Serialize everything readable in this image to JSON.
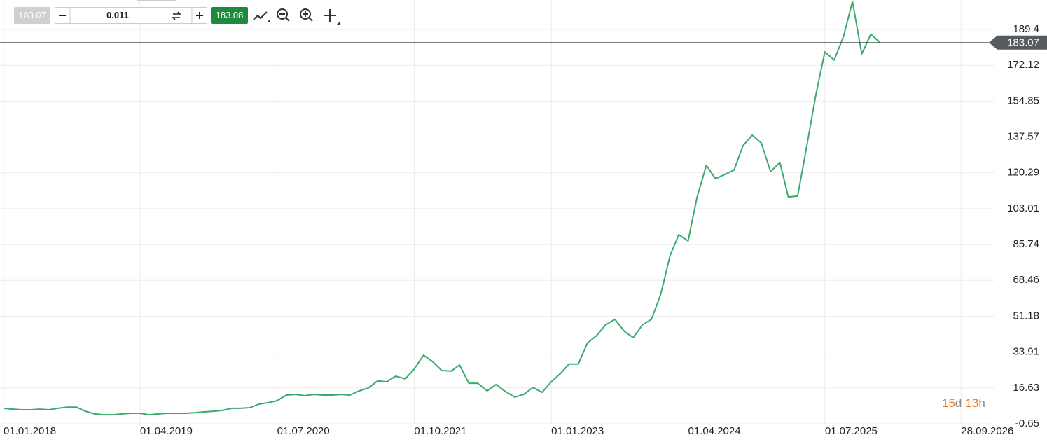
{
  "toolbar": {
    "bid": "183.07",
    "lot": "0.011",
    "ask": "183.08"
  },
  "countdown": {
    "days": "15",
    "days_unit": "d",
    "hours": "13",
    "hours_unit": "h"
  },
  "chart_data": {
    "type": "line",
    "color": "#3aaa6e",
    "grid": true,
    "x": [
      "01.01.2018",
      "01.02.2018",
      "01.03.2018",
      "01.04.2018",
      "01.05.2018",
      "01.06.2018",
      "01.07.2018",
      "01.08.2018",
      "01.09.2018",
      "01.10.2018",
      "01.11.2018",
      "01.12.2018",
      "01.01.2019",
      "01.02.2019",
      "01.03.2019",
      "01.04.2019",
      "01.05.2019",
      "01.06.2019",
      "01.07.2019",
      "01.08.2019",
      "01.09.2019",
      "01.10.2019",
      "01.11.2019",
      "01.12.2019",
      "01.01.2020",
      "01.02.2020",
      "01.03.2020",
      "01.04.2020",
      "01.05.2020",
      "01.06.2020",
      "01.07.2020",
      "01.08.2020",
      "01.09.2020",
      "01.10.2020",
      "01.11.2020",
      "01.12.2020",
      "01.01.2021",
      "01.02.2021",
      "01.03.2021",
      "01.04.2021",
      "01.05.2021",
      "01.06.2021",
      "01.07.2021",
      "01.08.2021",
      "01.09.2021",
      "01.10.2021",
      "01.11.2021",
      "01.12.2021",
      "01.01.2022",
      "01.02.2022",
      "01.03.2022",
      "01.04.2022",
      "01.05.2022",
      "01.06.2022",
      "01.07.2022",
      "01.08.2022",
      "01.09.2022",
      "01.10.2022",
      "01.11.2022",
      "01.12.2022",
      "01.01.2023",
      "01.02.2023",
      "01.03.2023",
      "01.04.2023",
      "01.05.2023",
      "01.06.2023",
      "01.07.2023",
      "01.08.2023",
      "01.09.2023",
      "01.10.2023",
      "01.11.2023",
      "01.12.2023",
      "01.01.2024",
      "01.02.2024",
      "01.03.2024",
      "01.04.2024",
      "01.05.2024",
      "01.06.2024",
      "01.07.2024",
      "01.08.2024",
      "01.09.2024",
      "01.10.2024",
      "01.11.2024",
      "01.12.2024",
      "01.01.2025",
      "01.02.2025",
      "01.03.2025",
      "01.04.2025",
      "01.05.2025",
      "01.06.2025",
      "01.07.2025",
      "01.08.2025",
      "01.09.2025",
      "01.10.2025",
      "01.11.2025",
      "01.12.2025",
      "01.01.2026"
    ],
    "values": [
      6.8,
      6.4,
      6.1,
      6.1,
      6.4,
      6.1,
      6.8,
      7.4,
      7.4,
      5.4,
      4.1,
      3.7,
      3.7,
      4.1,
      4.4,
      4.4,
      3.7,
      4.1,
      4.4,
      4.4,
      4.4,
      4.7,
      5.1,
      5.4,
      5.8,
      6.8,
      6.8,
      7.1,
      8.8,
      9.5,
      10.5,
      13.2,
      13.5,
      12.9,
      13.5,
      13.2,
      13.2,
      13.5,
      13.2,
      15.2,
      16.6,
      20.0,
      19.6,
      22.3,
      21.0,
      25.7,
      32.4,
      29.4,
      25.0,
      24.7,
      27.7,
      18.9,
      18.9,
      15.2,
      18.3,
      14.9,
      12.2,
      13.5,
      16.9,
      14.5,
      19.6,
      23.7,
      28.1,
      28.1,
      38.2,
      41.9,
      47.0,
      49.7,
      44.0,
      40.9,
      47.0,
      49.7,
      61.8,
      80.4,
      90.5,
      87.5,
      108.7,
      123.9,
      117.5,
      119.5,
      121.6,
      133.4,
      138.4,
      134.7,
      120.9,
      125.3,
      108.7,
      109.1,
      132.7,
      158.0,
      178.6,
      174.6,
      186.0,
      202.9,
      177.6,
      187.1,
      183.07
    ],
    "current_value": 183.07,
    "xlim": [
      "01.01.2018",
      "01.01.2027"
    ],
    "xticks": [
      "01.01.2018",
      "01.04.2019",
      "01.07.2020",
      "01.10.2021",
      "01.01.2023",
      "01.04.2024",
      "01.07.2025",
      "28.09.2026"
    ],
    "ylim": [
      -0.65,
      203.58
    ],
    "yticks": [
      -0.65,
      16.63,
      33.91,
      51.18,
      68.46,
      85.74,
      103.01,
      120.29,
      137.57,
      154.85,
      172.12,
      189.4
    ]
  }
}
